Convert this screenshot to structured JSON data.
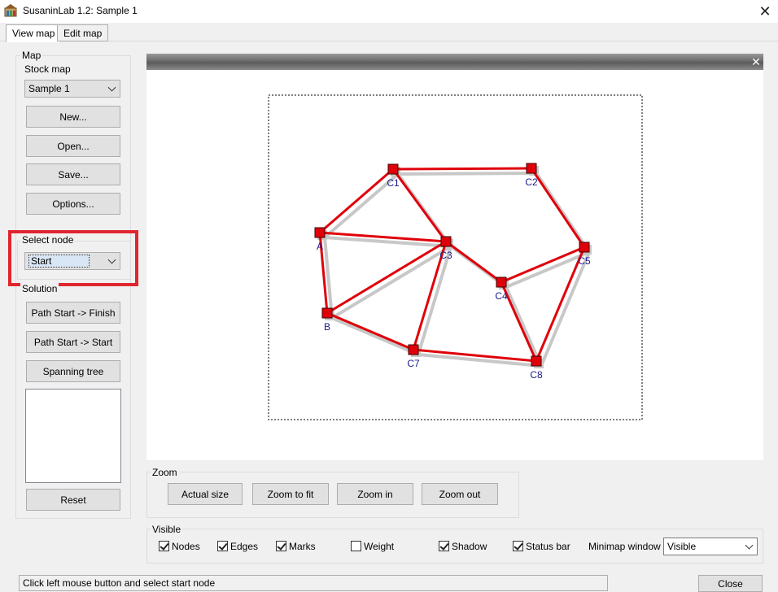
{
  "window": {
    "title": "SusaninLab 1.2: Sample 1",
    "close_glyph": "✕"
  },
  "tabs": [
    {
      "label": "View map"
    },
    {
      "label": "Edit map"
    }
  ],
  "map_group": {
    "label": "Map",
    "stock_map_label": "Stock map",
    "stock_map_value": "Sample 1",
    "buttons": {
      "new": "New...",
      "open": "Open...",
      "save": "Save...",
      "options": "Options..."
    }
  },
  "select_node": {
    "label": "Select node",
    "value": "Start"
  },
  "solution": {
    "label": "Solution",
    "buttons": {
      "path_finish": "Path Start -> Finish",
      "path_start": "Path Start -> Start",
      "spanning_tree": "Spanning tree",
      "reset": "Reset"
    }
  },
  "map_view": {
    "close_glyph": "✕",
    "node_color": "#e0000a",
    "edge_color": "#e0000a",
    "label_color": "#1a1a8c",
    "nodes": [
      {
        "id": "C1",
        "label": "C1"
      },
      {
        "id": "C2",
        "label": "C2"
      },
      {
        "id": "A",
        "label": "A"
      },
      {
        "id": "C3",
        "label": "C3"
      },
      {
        "id": "C5",
        "label": "C5"
      },
      {
        "id": "C4",
        "label": "C4"
      },
      {
        "id": "B",
        "label": "B"
      },
      {
        "id": "C7",
        "label": "C7"
      },
      {
        "id": "C8",
        "label": "C8"
      }
    ],
    "edges": [
      [
        "C1",
        "C2"
      ],
      [
        "C1",
        "A"
      ],
      [
        "C1",
        "C3"
      ],
      [
        "C2",
        "C5"
      ],
      [
        "A",
        "C3"
      ],
      [
        "A",
        "B"
      ],
      [
        "B",
        "C3"
      ],
      [
        "B",
        "C7"
      ],
      [
        "C3",
        "C7"
      ],
      [
        "C3",
        "C4"
      ],
      [
        "C4",
        "C5"
      ],
      [
        "C4",
        "C8"
      ],
      [
        "C5",
        "C8"
      ],
      [
        "C7",
        "C8"
      ]
    ]
  },
  "zoom": {
    "label": "Zoom",
    "buttons": {
      "actual": "Actual size",
      "fit": "Zoom to fit",
      "in": "Zoom in",
      "out": "Zoom out"
    }
  },
  "visible": {
    "label": "Visible",
    "options": [
      {
        "label": "Nodes",
        "checked": true
      },
      {
        "label": "Edges",
        "checked": true
      },
      {
        "label": "Marks",
        "checked": true
      },
      {
        "label": "Weight",
        "checked": false
      },
      {
        "label": "Shadow",
        "checked": true
      },
      {
        "label": "Status bar",
        "checked": true
      }
    ],
    "minimap_label": "Minimap window",
    "minimap_value": "Visible"
  },
  "status": {
    "text": "Click left mouse button and select start node"
  },
  "close_button": {
    "label": "Close"
  }
}
